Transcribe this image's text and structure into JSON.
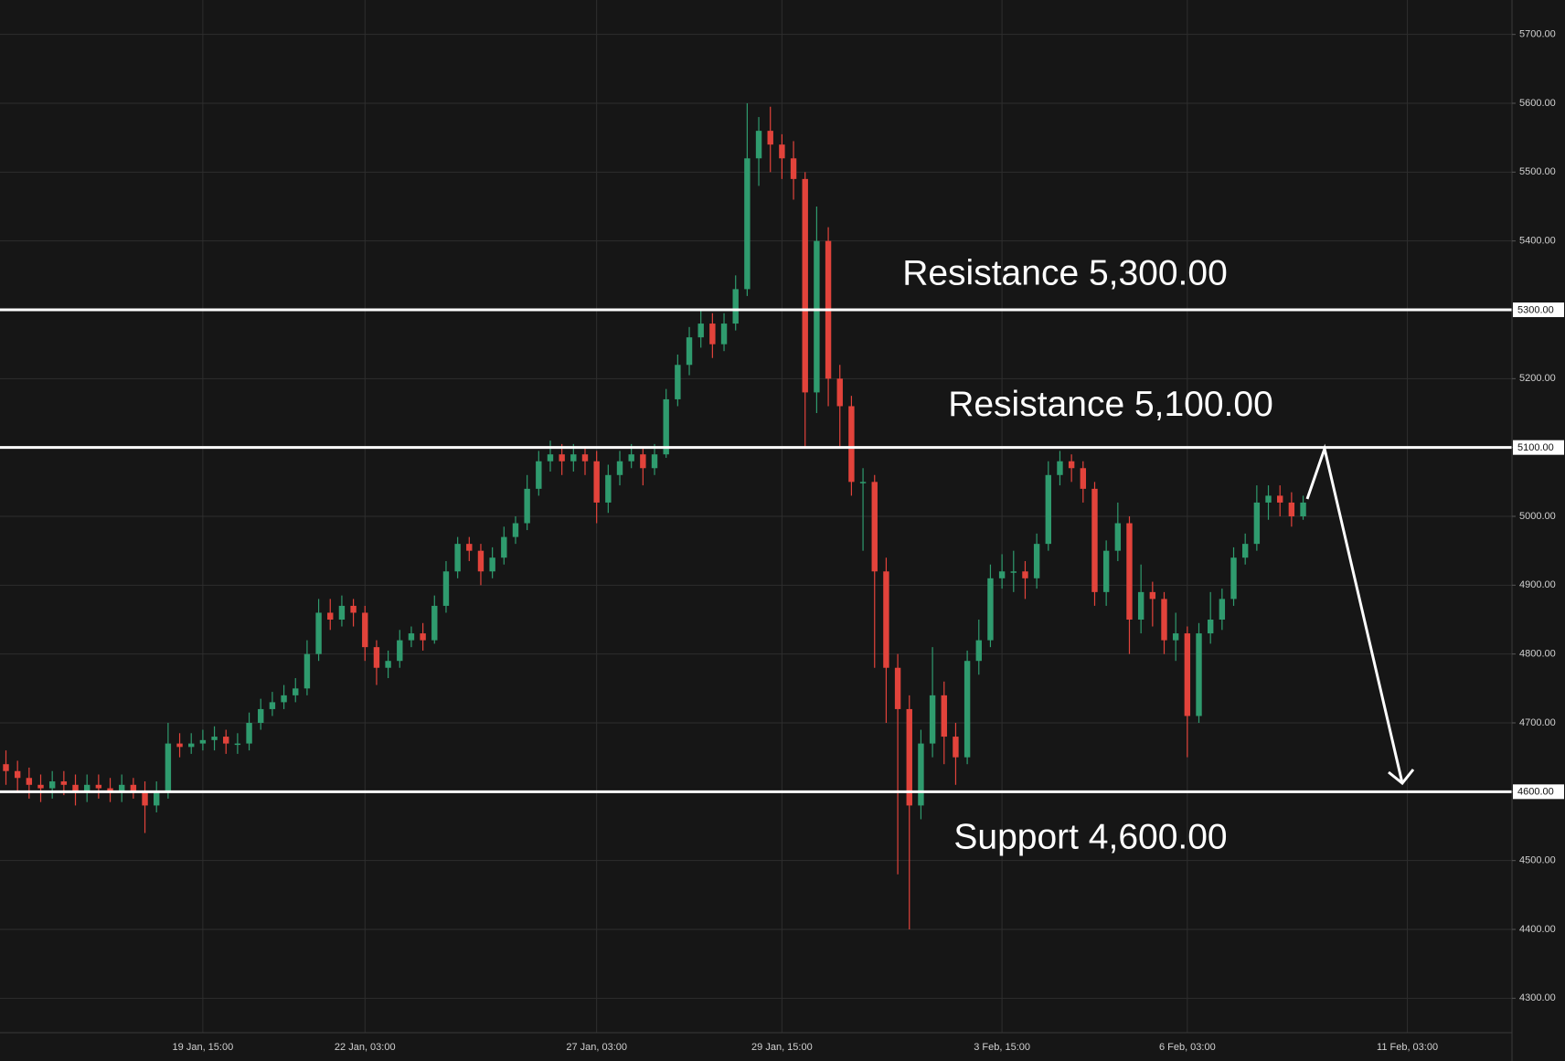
{
  "chart_data": {
    "type": "candlestick",
    "categories": [
      null,
      null,
      null,
      null,
      null,
      null,
      null,
      null,
      null,
      null,
      null,
      null,
      null,
      null,
      null,
      null,
      null,
      "19 Jan, 15:00",
      null,
      null,
      null,
      null,
      null,
      null,
      null,
      null,
      null,
      null,
      null,
      null,
      null,
      "22 Jan, 03:00",
      null,
      null,
      null,
      null,
      null,
      null,
      null,
      null,
      null,
      null,
      null,
      null,
      null,
      null,
      null,
      null,
      null,
      null,
      null,
      "27 Jan, 03:00",
      null,
      null,
      null,
      null,
      null,
      null,
      null,
      null,
      null,
      null,
      null,
      null,
      null,
      null,
      null,
      "29 Jan, 15:00",
      null,
      null,
      null,
      null,
      null,
      null,
      null,
      null,
      null,
      null,
      null,
      null,
      null,
      null,
      null,
      null,
      null,
      null,
      "3 Feb, 15:00",
      null,
      null,
      null,
      null,
      null,
      null,
      null,
      null,
      null,
      null,
      null,
      null,
      null,
      null,
      null,
      "6 Feb, 03:00",
      null,
      null,
      null,
      null,
      null,
      null,
      null,
      null,
      null,
      null,
      null,
      null,
      null,
      null,
      null,
      null,
      null,
      null,
      "11 Feb, 03:00",
      null
    ],
    "open": [
      4640,
      4630,
      4620,
      4610,
      4605,
      4615,
      4610,
      4600,
      4610,
      4605,
      4600,
      4610,
      4600,
      4580,
      4600,
      4670,
      4665,
      4670,
      4675,
      4680,
      4670,
      4670,
      4700,
      4720,
      4730,
      4740,
      4750,
      4800,
      4860,
      4850,
      4870,
      4860,
      4810,
      4780,
      4790,
      4820,
      4830,
      4820,
      4870,
      4920,
      4960,
      4950,
      4920,
      4940,
      4970,
      4990,
      5040,
      5080,
      5090,
      5080,
      5090,
      5080,
      5020,
      5060,
      5080,
      5090,
      5070,
      5090,
      5170,
      5220,
      5260,
      5280,
      5250,
      5280,
      5330,
      5520,
      5560,
      5540,
      5520,
      5490,
      5180,
      5400,
      5200,
      5160,
      5050,
      5050,
      4920,
      4780,
      4720,
      4580,
      4670,
      4740,
      4680,
      4650,
      4790,
      4820,
      4910,
      4920,
      4920,
      4910,
      4960,
      5060,
      5080,
      5070,
      5040,
      4890,
      4950,
      4990,
      4850,
      4890,
      4880,
      4820,
      4830,
      4710,
      4830,
      4850,
      4880,
      4940,
      4960,
      5020,
      5030,
      5020,
      5000,
      null,
      null,
      null,
      null,
      null,
      null,
      null,
      null,
      null,
      null
    ],
    "high": [
      4660,
      4645,
      4635,
      4625,
      4630,
      4630,
      4625,
      4625,
      4625,
      4620,
      4625,
      4620,
      4615,
      4615,
      4700,
      4685,
      4685,
      4690,
      4695,
      4690,
      4685,
      4715,
      4735,
      4745,
      4755,
      4765,
      4820,
      4880,
      4880,
      4885,
      4880,
      4870,
      4820,
      4805,
      4835,
      4840,
      4845,
      4885,
      4935,
      4970,
      4970,
      4960,
      4955,
      4985,
      5000,
      5060,
      5095,
      5110,
      5105,
      5105,
      5100,
      5095,
      5075,
      5095,
      5105,
      5100,
      5105,
      5185,
      5235,
      5275,
      5300,
      5295,
      5295,
      5350,
      5600,
      5580,
      5595,
      5555,
      5545,
      5500,
      5450,
      5420,
      5220,
      5175,
      5070,
      5060,
      4940,
      4800,
      4740,
      4690,
      4810,
      4760,
      4700,
      4805,
      4850,
      4930,
      4945,
      4950,
      4935,
      4975,
      5080,
      5095,
      5090,
      5080,
      5050,
      4965,
      5020,
      5000,
      4930,
      4905,
      4890,
      4860,
      4840,
      4845,
      4890,
      4895,
      4955,
      4975,
      5045,
      5045,
      5045,
      5035,
      5030,
      null,
      null,
      null,
      null,
      null,
      null,
      null,
      null,
      null,
      null
    ],
    "low": [
      4610,
      4600,
      4590,
      4585,
      4590,
      4595,
      4580,
      4585,
      4590,
      4585,
      4585,
      4590,
      4540,
      4570,
      4590,
      4650,
      4655,
      4660,
      4660,
      4655,
      4655,
      4660,
      4690,
      4710,
      4720,
      4730,
      4740,
      4790,
      4835,
      4840,
      4840,
      4790,
      4755,
      4765,
      4780,
      4810,
      4805,
      4815,
      4860,
      4910,
      4935,
      4900,
      4910,
      4930,
      4960,
      4980,
      5030,
      5065,
      5060,
      5065,
      5060,
      4990,
      5005,
      5045,
      5070,
      5045,
      5060,
      5085,
      5160,
      5205,
      5245,
      5230,
      5240,
      5270,
      5320,
      5480,
      5500,
      5490,
      5460,
      5100,
      5150,
      5160,
      5100,
      5030,
      4950,
      4780,
      4700,
      4480,
      4400,
      4560,
      4650,
      4640,
      4610,
      4640,
      4770,
      4810,
      4895,
      4890,
      4880,
      4895,
      4950,
      5045,
      5050,
      5020,
      4870,
      4870,
      4935,
      4800,
      4830,
      4840,
      4800,
      4790,
      4650,
      4700,
      4815,
      4835,
      4870,
      4930,
      4950,
      4995,
      5000,
      4985,
      4995,
      null,
      null,
      null,
      null,
      null,
      null,
      null,
      null,
      null,
      null
    ],
    "close": [
      4630,
      4620,
      4610,
      4605,
      4615,
      4610,
      4600,
      4610,
      4605,
      4600,
      4610,
      4600,
      4580,
      4600,
      4670,
      4665,
      4670,
      4675,
      4680,
      4670,
      4670,
      4700,
      4720,
      4730,
      4740,
      4750,
      4800,
      4860,
      4850,
      4870,
      4860,
      4810,
      4780,
      4790,
      4820,
      4830,
      4820,
      4870,
      4920,
      4960,
      4950,
      4920,
      4940,
      4970,
      4990,
      5040,
      5080,
      5090,
      5080,
      5090,
      5080,
      5020,
      5060,
      5080,
      5090,
      5070,
      5090,
      5170,
      5220,
      5260,
      5280,
      5250,
      5280,
      5330,
      5520,
      5560,
      5540,
      5520,
      5490,
      5180,
      5400,
      5200,
      5160,
      5050,
      5050,
      4920,
      4780,
      4720,
      4580,
      4670,
      4740,
      4680,
      4650,
      4790,
      4820,
      4910,
      4920,
      4920,
      4910,
      4960,
      5060,
      5080,
      5070,
      5040,
      4890,
      4950,
      4990,
      4850,
      4890,
      4880,
      4820,
      4830,
      4710,
      4830,
      4850,
      4880,
      4940,
      4960,
      5020,
      5030,
      5020,
      5000,
      5020,
      null,
      null,
      null,
      null,
      null,
      null,
      null,
      null,
      null,
      null
    ],
    "up_color": "#2f9b6e",
    "down_color": "#e2433b",
    "ylim": [
      4250,
      5750
    ],
    "yticks": [
      {
        "value": 4300,
        "label": "4300.00"
      },
      {
        "value": 4400,
        "label": "4400.00"
      },
      {
        "value": 4500,
        "label": "4500.00"
      },
      {
        "value": 4600,
        "label": "4600.00"
      },
      {
        "value": 4700,
        "label": "4700.00"
      },
      {
        "value": 4800,
        "label": "4800.00"
      },
      {
        "value": 4900,
        "label": "4900.00"
      },
      {
        "value": 5000,
        "label": "5000.00"
      },
      {
        "value": 5100,
        "label": "5100.00"
      },
      {
        "value": 5200,
        "label": "5200.00"
      },
      {
        "value": 5300,
        "label": "5300.00"
      },
      {
        "value": 5400,
        "label": "5400.00"
      },
      {
        "value": 5500,
        "label": "5500.00"
      },
      {
        "value": 5600,
        "label": "5600.00"
      },
      {
        "value": 5700,
        "label": "5700.00"
      }
    ],
    "grid": true,
    "levels": [
      {
        "value": 5300,
        "label": "Resistance 5,300.00",
        "axis_label": "5300.00"
      },
      {
        "value": 5100,
        "label": "Resistance 5,100.00",
        "axis_label": "5100.00"
      },
      {
        "value": 4600,
        "label": "Support 4,600.00",
        "axis_label": "4600.00"
      }
    ]
  }
}
